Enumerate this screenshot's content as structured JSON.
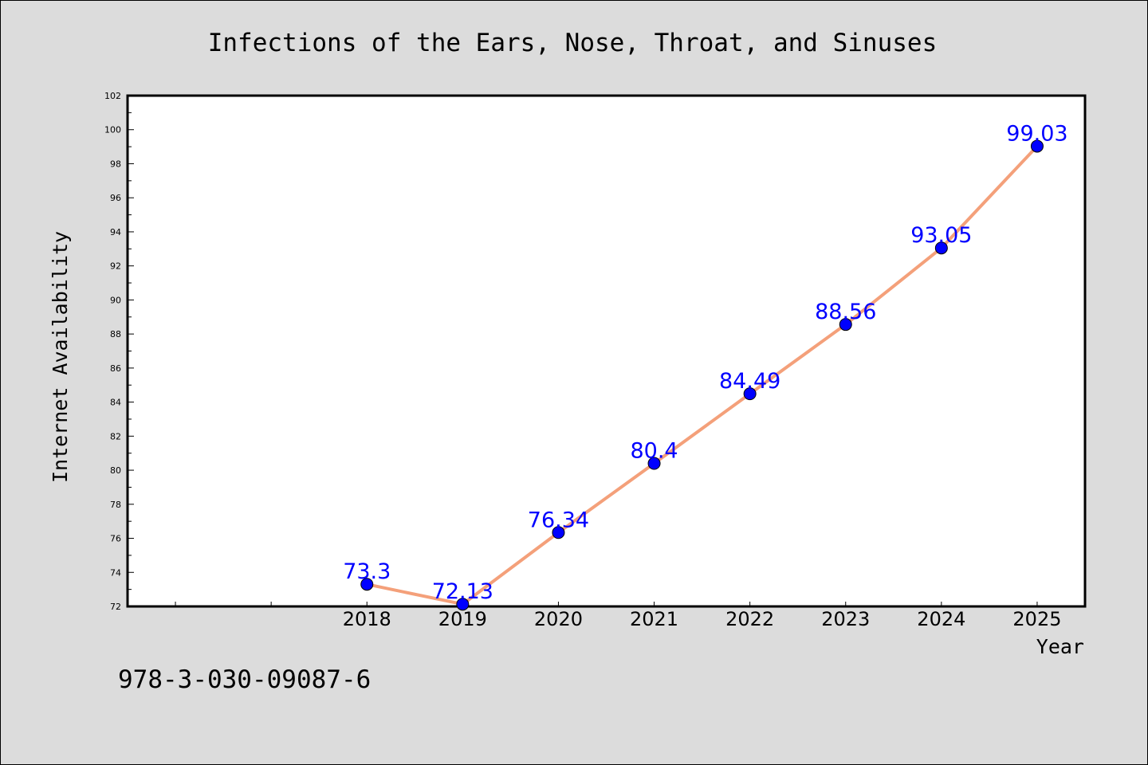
{
  "chart_data": {
    "type": "line",
    "title": "Infections of the Ears, Nose, Throat, and Sinuses",
    "xlabel": "Year",
    "ylabel": "Internet Availability",
    "categories": [
      "2018",
      "2019",
      "2020",
      "2021",
      "2022",
      "2023",
      "2024",
      "2025"
    ],
    "series": [
      {
        "values": [
          73.3,
          72.13,
          76.34,
          80.4,
          84.49,
          88.56,
          93.05,
          99.03
        ]
      }
    ],
    "data_labels": [
      "73.3",
      "72.13",
      "76.34",
      "80.4",
      "84.49",
      "88.56",
      "93.05",
      "99.03"
    ],
    "yticks": [
      "72",
      "74",
      "76",
      "78",
      "80",
      "82",
      "84",
      "86",
      "88",
      "90",
      "92",
      "94",
      "96",
      "98",
      "100",
      "102"
    ],
    "ylim": [
      72,
      102
    ],
    "grid": false,
    "colors": {
      "line": "#f4a07a",
      "marker": "#0000ff",
      "label": "#0000ff",
      "background": "#dcdcdc",
      "plot_area": "#ffffff"
    }
  },
  "footnote": "978-3-030-09087-6"
}
